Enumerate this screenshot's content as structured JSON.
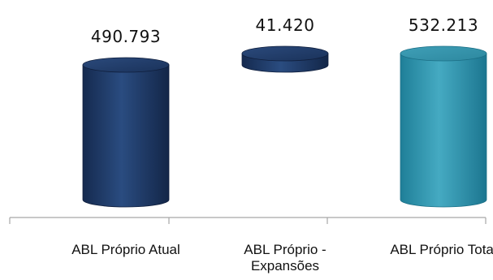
{
  "chart_data": {
    "type": "waterfall",
    "title": "",
    "xlabel": "",
    "ylabel": "",
    "ylim": [
      0,
      532213
    ],
    "grid": false,
    "legend": "none",
    "categories": [
      "ABL Próprio Atual",
      "ABL Próprio - Expansões",
      "ABL Próprio Total"
    ],
    "category_lines": [
      [
        "ABL Próprio Atual"
      ],
      [
        "ABL Próprio -",
        "Expansões"
      ],
      [
        "ABL Próprio Total"
      ]
    ],
    "values": [
      490793,
      41420,
      532213
    ],
    "data_labels": [
      "490.793",
      "41.420",
      "532.213"
    ],
    "bar_kinds": [
      "increase",
      "increase",
      "total"
    ],
    "colors": {
      "increase": "#1f3a66",
      "total": "#3a9db3",
      "axis": "#a6a6a6"
    }
  }
}
